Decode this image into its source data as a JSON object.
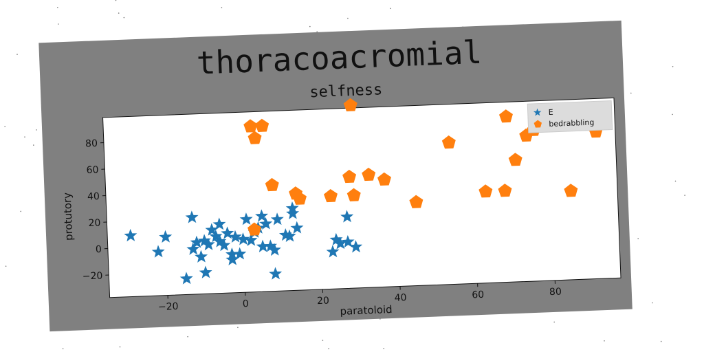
{
  "figure": {
    "title": "thoracoacromial",
    "background_color": "#808080"
  },
  "chart_data": {
    "type": "scatter",
    "title": "selfness",
    "xlabel": "paratoloid",
    "ylabel": "protutory",
    "xlim": [
      -35,
      97
    ],
    "ylim": [
      -37,
      99
    ],
    "xticks": [
      -20,
      0,
      20,
      40,
      60,
      80
    ],
    "yticks": [
      -20,
      0,
      20,
      40,
      60,
      80
    ],
    "grid": false,
    "legend_placement": "top-right",
    "series": [
      {
        "name": "E",
        "marker": "star",
        "color": "#1f77b4",
        "points": [
          [
            -29,
            9
          ],
          [
            -22,
            -4
          ],
          [
            -20,
            7
          ],
          [
            -13,
            21
          ],
          [
            -13,
            -3
          ],
          [
            -12,
            2
          ],
          [
            -11,
            -9
          ],
          [
            -10,
            3
          ],
          [
            -9,
            0
          ],
          [
            -8,
            11
          ],
          [
            -7,
            6
          ],
          [
            -6,
            15
          ],
          [
            -6,
            2
          ],
          [
            -5,
            -1
          ],
          [
            -4,
            8
          ],
          [
            -3,
            -8
          ],
          [
            -3,
            -12
          ],
          [
            -2,
            5
          ],
          [
            -1,
            -8
          ],
          [
            0,
            3
          ],
          [
            1,
            18
          ],
          [
            2,
            2
          ],
          [
            3,
            8
          ],
          [
            4,
            11
          ],
          [
            5,
            20
          ],
          [
            5,
            -3
          ],
          [
            6,
            14
          ],
          [
            7,
            -3
          ],
          [
            8,
            -6
          ],
          [
            9,
            17
          ],
          [
            11,
            5
          ],
          [
            12,
            4
          ],
          [
            13,
            25
          ],
          [
            13,
            21
          ],
          [
            14,
            10
          ],
          [
            24,
            0
          ],
          [
            23,
            -9
          ],
          [
            25,
            -3
          ],
          [
            27,
            -2
          ],
          [
            27,
            17
          ],
          [
            29,
            -6
          ],
          [
            -15,
            -25
          ],
          [
            -10,
            -21
          ],
          [
            8,
            -24
          ]
        ]
      },
      {
        "name": "bedrabbling",
        "marker": "pentagon",
        "color": "#ff7f0e",
        "points": [
          [
            3,
            88
          ],
          [
            6,
            88
          ],
          [
            4,
            79
          ],
          [
            3,
            10
          ],
          [
            8,
            43
          ],
          [
            14,
            36
          ],
          [
            15,
            32
          ],
          [
            23,
            33
          ],
          [
            28,
            47
          ],
          [
            29,
            33
          ],
          [
            33,
            48
          ],
          [
            29,
            101
          ],
          [
            37,
            44
          ],
          [
            45,
            26
          ],
          [
            54,
            70
          ],
          [
            63,
            32
          ],
          [
            68,
            32
          ],
          [
            69,
            88
          ],
          [
            71,
            55
          ],
          [
            74,
            73
          ],
          [
            76,
            77
          ],
          [
            85,
            30
          ],
          [
            92,
            74
          ]
        ]
      }
    ]
  }
}
